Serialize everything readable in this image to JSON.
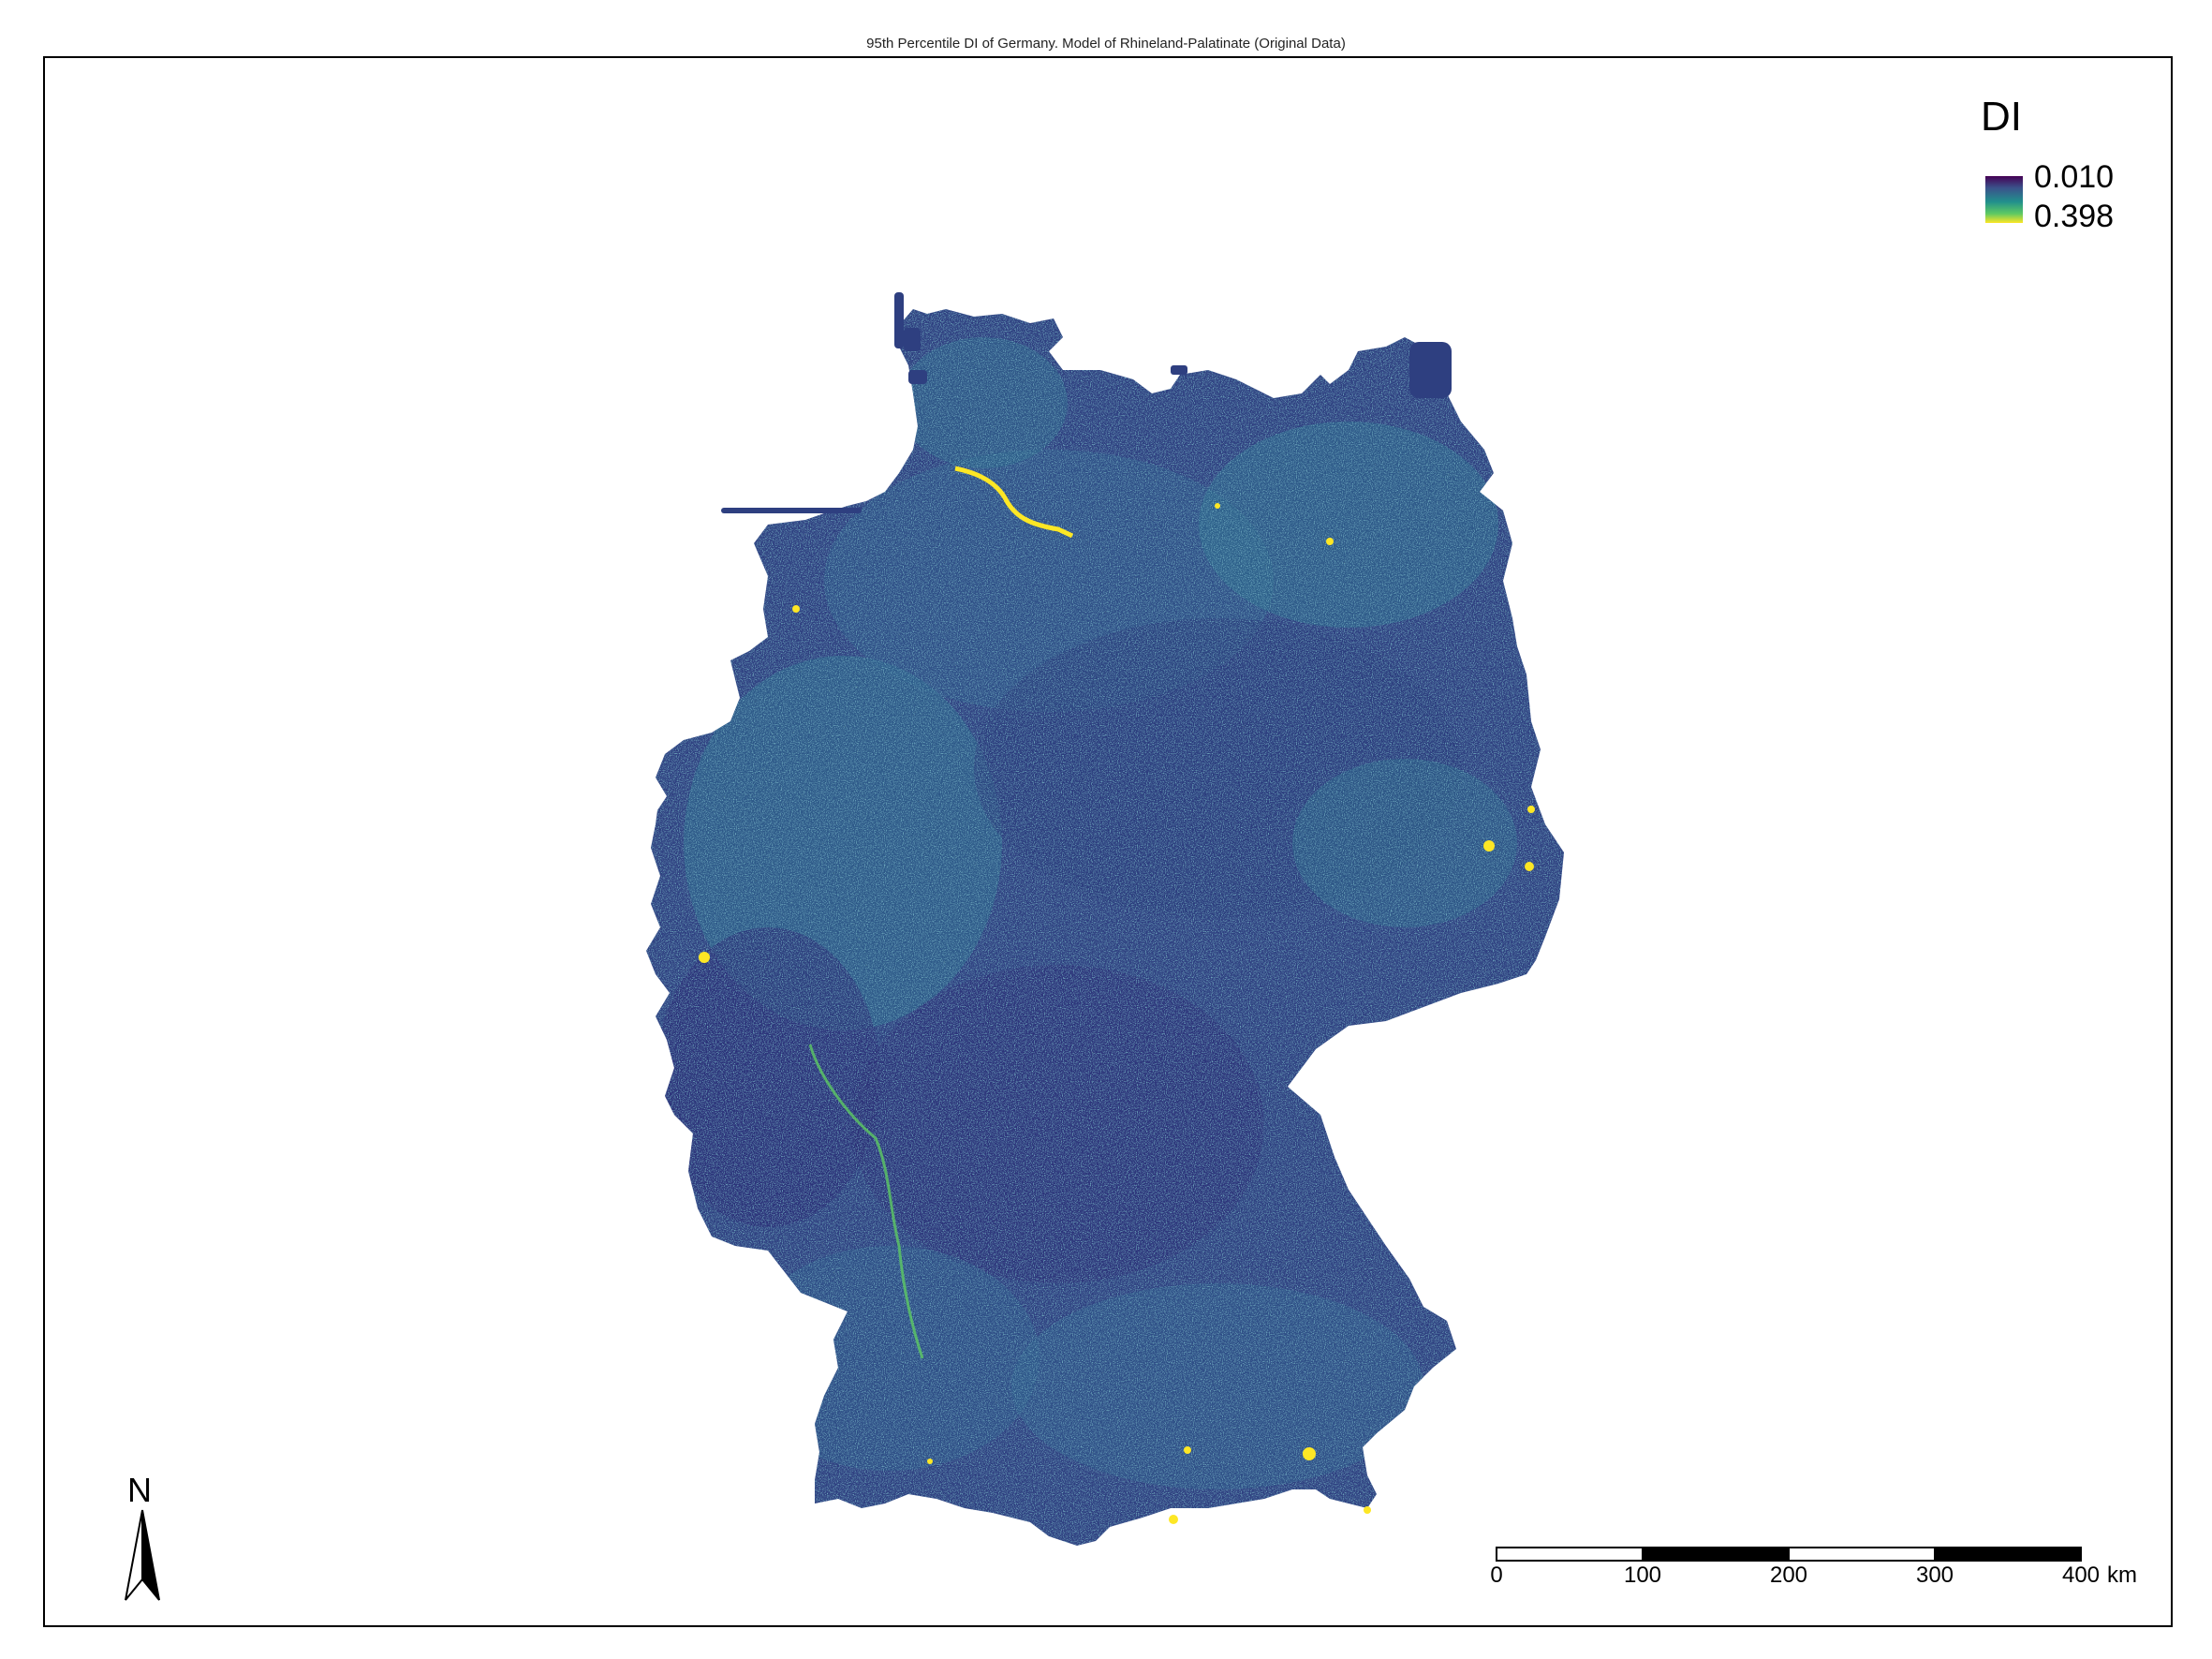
{
  "title": "95th Percentile DI of Germany. Model of Rhineland-Palatinate (Original Data)",
  "legend": {
    "title": "DI",
    "min": "0.010",
    "max": "0.398",
    "ramp_colors": [
      "#440154",
      "#3b528b",
      "#21908c",
      "#5dc963",
      "#fde725"
    ]
  },
  "north_arrow": {
    "label": "N"
  },
  "scale_bar": {
    "ticks": [
      "0",
      "100",
      "200",
      "300",
      "400"
    ],
    "unit": "km"
  },
  "colors": {
    "land_base": "#2e3f80",
    "land_dark": "#2a2a74",
    "land_mid": "#2d6e8e",
    "highlight": "#fde725",
    "green": "#5dc963"
  }
}
